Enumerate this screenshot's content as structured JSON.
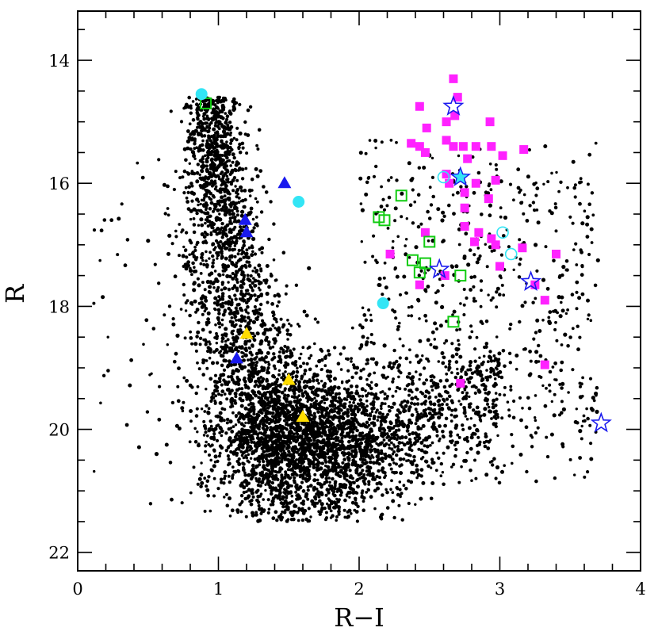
{
  "chart_data": {
    "type": "scatter",
    "title": "",
    "xlabel": "R−I",
    "ylabel": "R",
    "xlim": [
      0,
      4
    ],
    "ylim": [
      22.3,
      13.2
    ],
    "y_inverted": true,
    "x_ticks": [
      "0",
      "1",
      "2",
      "3",
      "4"
    ],
    "y_ticks": [
      "14",
      "16",
      "18",
      "20",
      "22"
    ],
    "grid": false,
    "legend": "none",
    "colors": {
      "field": "#000000",
      "magenta_square": "#ff22ff",
      "cyan": "#33e5f5",
      "green_square": "#11cc11",
      "blue": "#1a1aee",
      "yellow": "#ffdd00"
    },
    "field_population": {
      "description": "dense cloud of black field-star dots (rendered procedurally)",
      "marker": "filled-circle",
      "color": "#000000"
    },
    "series": [
      {
        "marker": "filled-square",
        "color": "#ff22ff",
        "points": [
          [
            2.67,
            14.3
          ],
          [
            2.43,
            14.75
          ],
          [
            2.7,
            14.6
          ],
          [
            2.68,
            14.9
          ],
          [
            2.93,
            15.0
          ],
          [
            2.48,
            15.1
          ],
          [
            2.62,
            15.0
          ],
          [
            2.62,
            15.3
          ],
          [
            2.37,
            15.35
          ],
          [
            2.43,
            15.4
          ],
          [
            2.47,
            15.5
          ],
          [
            2.67,
            15.4
          ],
          [
            2.74,
            15.4
          ],
          [
            2.83,
            15.4
          ],
          [
            2.77,
            15.6
          ],
          [
            2.94,
            15.4
          ],
          [
            3.02,
            15.55
          ],
          [
            3.17,
            15.45
          ],
          [
            2.62,
            15.85
          ],
          [
            2.64,
            16.0
          ],
          [
            2.75,
            16.15
          ],
          [
            2.83,
            16.0
          ],
          [
            2.92,
            16.25
          ],
          [
            2.97,
            15.95
          ],
          [
            2.75,
            16.4
          ],
          [
            2.75,
            16.7
          ],
          [
            2.85,
            16.8
          ],
          [
            2.82,
            16.95
          ],
          [
            2.94,
            16.9
          ],
          [
            2.97,
            17.0
          ],
          [
            2.47,
            16.8
          ],
          [
            2.22,
            17.15
          ],
          [
            3.0,
            17.35
          ],
          [
            2.61,
            17.5
          ],
          [
            2.43,
            17.65
          ],
          [
            3.16,
            17.05
          ],
          [
            3.25,
            17.65
          ],
          [
            3.4,
            17.15
          ],
          [
            3.32,
            17.9
          ],
          [
            3.32,
            18.95
          ],
          [
            2.72,
            19.25
          ]
        ]
      },
      {
        "marker": "filled-circle",
        "color": "#33e5f5",
        "points": [
          [
            0.88,
            14.55
          ],
          [
            1.57,
            16.3
          ],
          [
            2.17,
            17.95
          ]
        ]
      },
      {
        "marker": "open-circle",
        "color": "#33e5f5",
        "points": [
          [
            2.6,
            15.9
          ],
          [
            3.02,
            16.8
          ],
          [
            3.08,
            17.15
          ]
        ]
      },
      {
        "marker": "open-square",
        "color": "#11cc11",
        "points": [
          [
            0.91,
            14.7
          ],
          [
            2.3,
            16.2
          ],
          [
            2.14,
            16.55
          ],
          [
            2.18,
            16.6
          ],
          [
            2.5,
            16.95
          ],
          [
            2.38,
            17.25
          ],
          [
            2.47,
            17.3
          ],
          [
            2.43,
            17.45
          ],
          [
            2.72,
            17.5
          ],
          [
            2.67,
            18.25
          ]
        ]
      },
      {
        "marker": "filled-triangle",
        "color": "#1a1aee",
        "points": [
          [
            1.47,
            16.0
          ],
          [
            1.19,
            16.6
          ],
          [
            1.2,
            16.8
          ],
          [
            1.13,
            18.85
          ]
        ]
      },
      {
        "marker": "filled-triangle",
        "color": "#ffdd00",
        "points": [
          [
            1.2,
            18.45
          ],
          [
            1.5,
            19.2
          ],
          [
            1.6,
            19.8
          ]
        ]
      },
      {
        "marker": "open-star",
        "color": "#1a1aee",
        "points": [
          [
            2.67,
            14.75
          ],
          [
            2.57,
            17.4
          ],
          [
            3.22,
            17.6
          ],
          [
            3.72,
            19.9
          ]
        ]
      },
      {
        "marker": "filled-star",
        "color": "#33e5f5",
        "points": [
          [
            2.72,
            15.9
          ]
        ]
      }
    ]
  }
}
